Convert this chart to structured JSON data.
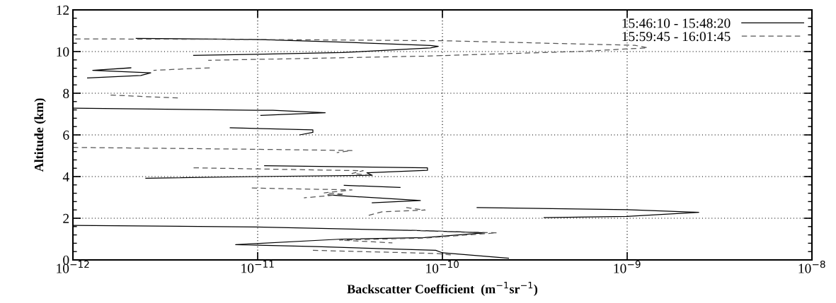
{
  "chart_data": {
    "type": "line",
    "xlabel": "Backscatter Coefficient  (m$^{−1}$sr$^{−1}$)",
    "ylabel": "Altitude (km)",
    "log": "x",
    "grid": true,
    "legend": "top right",
    "xlim": [
      1e-12,
      1e-08
    ],
    "xticks": [
      {
        "value": 1e-12,
        "label": "10$^{−12}$"
      },
      {
        "value": 1e-11,
        "label": "10$^{−11}$"
      },
      {
        "value": 1e-10,
        "label": "10$^{−10}$"
      },
      {
        "value": 1e-09,
        "label": "10$^{−9}$"
      },
      {
        "value": 1e-08,
        "label": "10$^{−8}$"
      }
    ],
    "ylim": [
      0,
      12
    ],
    "yticks": [
      0,
      2,
      4,
      6,
      8,
      10,
      12
    ],
    "series": [
      {
        "name": "15:46:10 - 15:48:20",
        "color": "#000000",
        "line_style": "solid",
        "x": [
          2.2e-12,
          9.8e-12,
          2.86e-11,
          8.6e-11,
          9.5e-11,
          8.6e-11,
          2.86e-11,
          9.8e-12,
          4.5e-12,
          null,
          2.06e-12,
          1.28e-12,
          2.64e-12,
          2.33e-12,
          1.2e-12,
          null,
          1e-12,
          9.8e-12,
          1.21e-11,
          2.32e-11,
          1.04e-11,
          null,
          7.1e-12,
          9.8e-12,
          1.99e-11,
          1.99e-11,
          1.69e-11,
          null,
          1.09e-11,
          8.3e-11,
          8.3e-11,
          3.9e-11,
          4.17e-11,
          9.8e-12,
          2.48e-12,
          null,
          2.94e-11,
          5.9e-11,
          null,
          2.4e-11,
          7.6e-11,
          4.17e-11,
          null,
          1.54e-10,
          1e-09,
          2.44e-09,
          1e-09,
          3.55e-10,
          null,
          1e-12,
          9.8e-12,
          5.9e-11,
          8e-11,
          1.7e-10,
          8e-11,
          2.86e-11,
          7.6e-12,
          2.08e-11,
          9.2e-11,
          1e-10,
          2.28e-10
        ],
        "values": [
          10.63,
          10.58,
          10.45,
          10.29,
          10.25,
          10.17,
          9.95,
          9.87,
          9.82,
          null,
          9.22,
          9.1,
          8.98,
          8.85,
          8.73,
          null,
          7.28,
          7.18,
          7.18,
          7.06,
          6.94,
          null,
          6.34,
          6.31,
          6.24,
          6.12,
          6.0,
          null,
          4.52,
          4.42,
          4.3,
          4.18,
          4.06,
          4.0,
          3.92,
          null,
          3.58,
          3.48,
          null,
          3.12,
          2.85,
          2.74,
          null,
          2.51,
          2.41,
          2.28,
          2.09,
          2.03,
          null,
          1.66,
          1.58,
          1.43,
          1.4,
          1.3,
          1.07,
          1.0,
          0.73,
          0.64,
          0.46,
          0.34,
          0.08
        ]
      },
      {
        "name": "15:59:45 - 16:01:45",
        "color": "#555555",
        "line_style": "dashed",
        "x": [
          1.03e-12,
          9.8e-12,
          1e-10,
          1.1e-09,
          1.29e-09,
          5.7e-10,
          8e-11,
          5.4e-12,
          null,
          5.5e-12,
          2.73e-12,
          null,
          1.6e-12,
          3.8e-12,
          null,
          1e-12,
          9.8e-12,
          3.24e-11,
          2.68e-11,
          null,
          4.5e-12,
          3.73e-11,
          3.24e-11,
          4.04e-11,
          null,
          9.3e-12,
          3.24e-11,
          2.29e-11,
          2.94e-11,
          1.78e-11,
          null,
          6.37e-11,
          8.07e-11,
          4.72e-11,
          3.9e-11,
          null,
          6.1e-11,
          1.97e-10,
          8e-11,
          2.77e-11,
          5.36e-11,
          null,
          1.99e-11,
          9.2e-11,
          1.11e-10
        ],
        "values": [
          10.61,
          10.58,
          10.52,
          10.3,
          10.18,
          10.01,
          9.78,
          9.58,
          null,
          9.22,
          9.1,
          null,
          7.91,
          7.77,
          null,
          5.4,
          5.31,
          5.25,
          5.15,
          null,
          4.42,
          4.28,
          4.15,
          4.06,
          null,
          3.45,
          3.36,
          3.22,
          3.15,
          2.98,
          null,
          2.51,
          2.39,
          2.31,
          2.12,
          null,
          1.43,
          1.3,
          1.05,
          0.95,
          0.82,
          null,
          0.46,
          0.31,
          0.24
        ]
      }
    ]
  }
}
